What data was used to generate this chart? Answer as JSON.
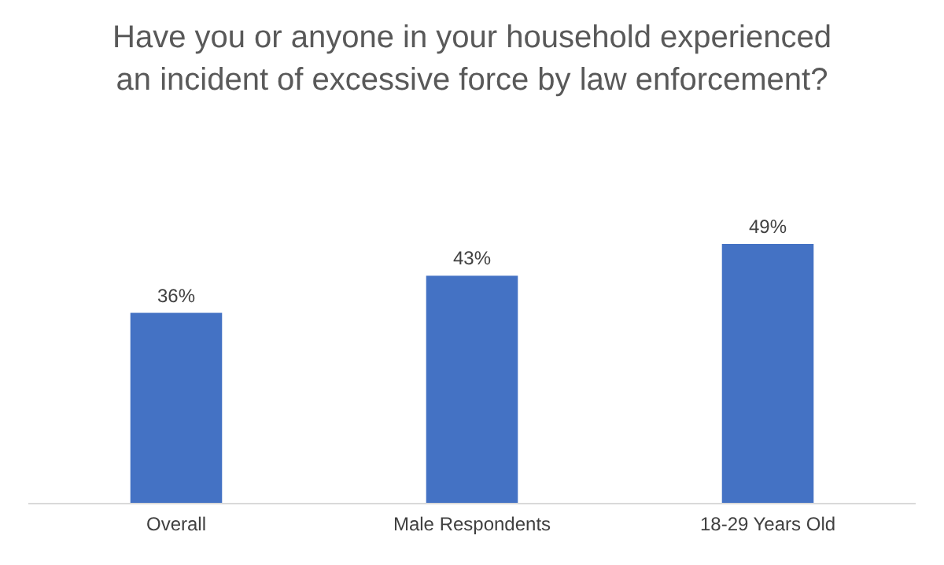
{
  "chart_data": {
    "type": "bar",
    "title": "Have you or anyone in your household experienced an incident of excessive force by law enforcement?",
    "categories": [
      "Overall",
      "Male Respondents",
      "18-29 Years Old"
    ],
    "values": [
      36,
      43,
      49
    ],
    "value_labels": [
      "36%",
      "43%",
      "49%"
    ],
    "color": "#4472c4"
  }
}
